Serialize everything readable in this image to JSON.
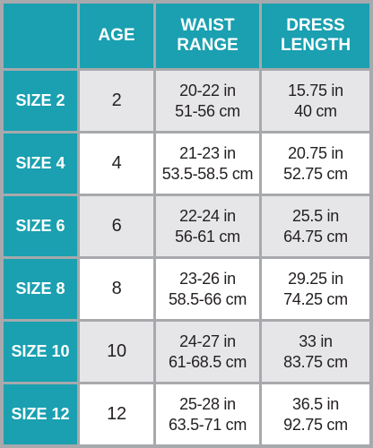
{
  "header": {
    "corner": "",
    "columns": [
      "AGE",
      "WAIST RANGE",
      "DRESS LENGTH"
    ]
  },
  "rows": [
    {
      "label": "SIZE 2",
      "age": "2",
      "waist": [
        "20-22 in",
        "51-56 cm"
      ],
      "length": [
        "15.75 in",
        "40 cm"
      ]
    },
    {
      "label": "SIZE 4",
      "age": "4",
      "waist": [
        "21-23 in",
        "53.5-58.5 cm"
      ],
      "length": [
        "20.75 in",
        "52.75 cm"
      ]
    },
    {
      "label": "SIZE 6",
      "age": "6",
      "waist": [
        "22-24 in",
        "56-61 cm"
      ],
      "length": [
        "25.5 in",
        "64.75 cm"
      ]
    },
    {
      "label": "SIZE 8",
      "age": "8",
      "waist": [
        "23-26 in",
        "58.5-66 cm"
      ],
      "length": [
        "29.25 in",
        "74.25 cm"
      ]
    },
    {
      "label": "SIZE 10",
      "age": "10",
      "waist": [
        "24-27 in",
        "61-68.5 cm"
      ],
      "length": [
        "33 in",
        "83.75 cm"
      ]
    },
    {
      "label": "SIZE 12",
      "age": "12",
      "waist": [
        "25-28 in",
        "63.5-71 cm"
      ],
      "length": [
        "36.5 in",
        "92.75 cm"
      ]
    }
  ]
}
